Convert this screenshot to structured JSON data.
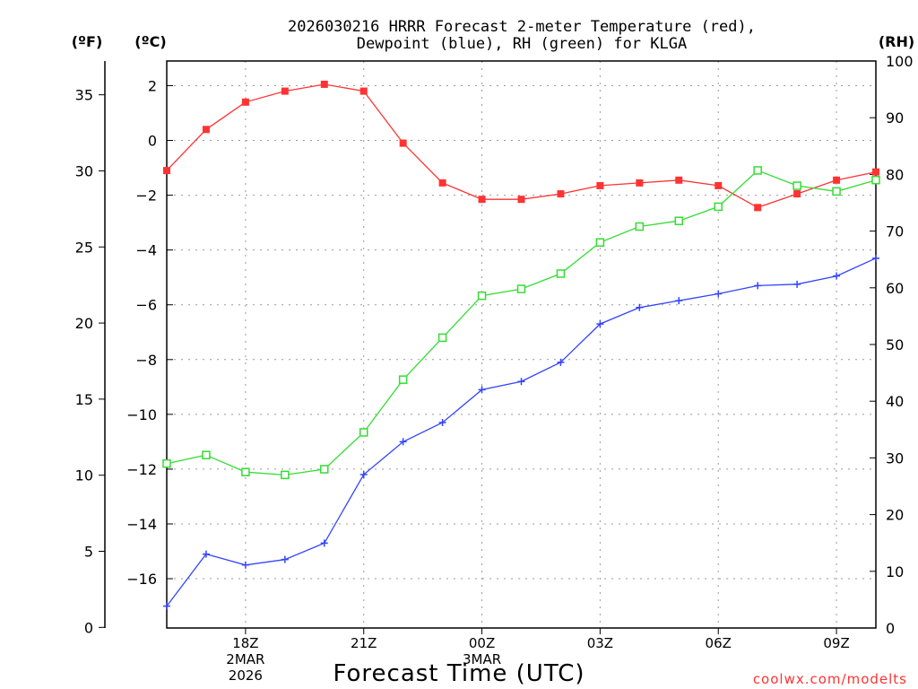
{
  "chart_data": {
    "type": "line",
    "title_line1": "2026030216 HRRR Forecast 2-meter Temperature (red),",
    "title_line2": "Dewpoint (blue), RH (green) for KLGA",
    "xlabel": "Forecast Time (UTC)",
    "watermark": "coolwx.com/modelts",
    "units": {
      "fahrenheit": "(ºF)",
      "celsius": "(ºC)",
      "rh": "(RH)"
    },
    "x_hours": [
      16,
      17,
      18,
      19,
      20,
      21,
      22,
      23,
      24,
      25,
      26,
      27,
      28,
      29,
      30,
      31,
      32,
      33,
      34
    ],
    "x_range": [
      16,
      34
    ],
    "x_ticks": [
      {
        "hour": 18,
        "label": "18Z",
        "sub1": "2MAR",
        "sub2": "2026"
      },
      {
        "hour": 21,
        "label": "21Z"
      },
      {
        "hour": 24,
        "label": "00Z",
        "sub1": "3MAR"
      },
      {
        "hour": 27,
        "label": "03Z"
      },
      {
        "hour": 30,
        "label": "06Z"
      },
      {
        "hour": 33,
        "label": "09Z"
      }
    ],
    "y_celsius_range": [
      -17.8,
      2.9
    ],
    "y_fahrenheit_ticks": [
      0,
      5,
      10,
      15,
      20,
      25,
      30,
      35
    ],
    "y_celsius_ticks": [
      2,
      0,
      -2,
      -4,
      -6,
      -8,
      -10,
      -12,
      -14,
      -16
    ],
    "y_rh_range": [
      0,
      100
    ],
    "y_rh_ticks": [
      0,
      10,
      20,
      30,
      40,
      50,
      60,
      70,
      80,
      90,
      100
    ],
    "series": [
      {
        "name": "Temperature",
        "color": "#ff3333",
        "axis": "celsius",
        "marker": "filled-square",
        "values": [
          -1.1,
          0.4,
          1.4,
          1.8,
          2.05,
          1.8,
          -0.1,
          -1.55,
          -2.15,
          -2.15,
          -1.95,
          -1.65,
          -1.55,
          -1.45,
          -1.65,
          -2.45,
          -1.95,
          -1.45,
          -1.15
        ]
      },
      {
        "name": "Dewpoint",
        "color": "#3344ff",
        "axis": "celsius",
        "marker": "plus",
        "values": [
          -17.0,
          -15.1,
          -15.5,
          -15.3,
          -14.7,
          -12.2,
          -11.0,
          -10.3,
          -9.1,
          -8.8,
          -8.1,
          -6.7,
          -6.1,
          -5.85,
          -5.6,
          -5.3,
          -5.25,
          -4.95,
          -4.3
        ]
      },
      {
        "name": "RH",
        "color": "#33dd33",
        "axis": "rh",
        "marker": "open-square",
        "values": [
          29.0,
          30.5,
          27.5,
          27.0,
          28.0,
          34.5,
          43.8,
          51.2,
          58.6,
          59.8,
          62.5,
          68.0,
          70.8,
          71.8,
          74.3,
          80.7,
          78.0,
          77.0,
          79.0
        ]
      }
    ]
  }
}
